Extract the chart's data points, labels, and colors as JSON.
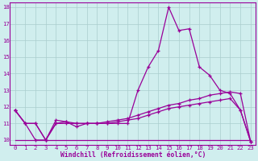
{
  "xlabel": "Windchill (Refroidissement éolien,°C)",
  "x": [
    0,
    1,
    2,
    3,
    4,
    5,
    6,
    7,
    8,
    9,
    10,
    11,
    12,
    13,
    14,
    15,
    16,
    17,
    18,
    19,
    20,
    21,
    22,
    23
  ],
  "main_y": [
    11.8,
    11.0,
    11.0,
    10.0,
    11.2,
    11.1,
    10.8,
    11.0,
    11.0,
    11.0,
    11.0,
    11.0,
    13.0,
    14.4,
    15.4,
    18.0,
    16.6,
    16.7,
    14.4,
    13.9,
    13.0,
    12.8,
    11.8,
    9.9
  ],
  "line2_y": [
    11.8,
    11.0,
    11.0,
    10.0,
    11.0,
    11.1,
    11.0,
    11.0,
    11.0,
    11.1,
    11.2,
    11.3,
    11.5,
    11.7,
    11.9,
    12.1,
    12.2,
    12.4,
    12.5,
    12.7,
    12.8,
    12.9,
    12.8,
    9.9
  ],
  "line3_y": [
    11.8,
    11.0,
    10.0,
    10.0,
    11.0,
    11.0,
    11.0,
    11.0,
    11.0,
    11.0,
    11.1,
    11.2,
    11.3,
    11.5,
    11.7,
    11.9,
    12.0,
    12.1,
    12.2,
    12.3,
    12.4,
    12.5,
    11.8,
    9.9
  ],
  "line4_y": [
    10.0,
    10.0,
    10.0,
    10.0,
    10.0,
    10.0,
    10.0,
    10.0,
    10.0,
    10.0,
    10.0,
    10.0,
    10.0,
    10.0,
    10.0,
    10.0,
    10.0,
    10.0,
    10.0,
    10.0,
    10.0,
    10.0,
    10.0,
    10.0
  ],
  "line_color": "#990099",
  "bg_color": "#d0eeee",
  "grid_color": "#aacece",
  "ylim": [
    9.7,
    18.3
  ],
  "yticks": [
    10,
    11,
    12,
    13,
    14,
    15,
    16,
    17,
    18
  ],
  "tick_fontsize": 5.2,
  "xlabel_fontsize": 5.8
}
